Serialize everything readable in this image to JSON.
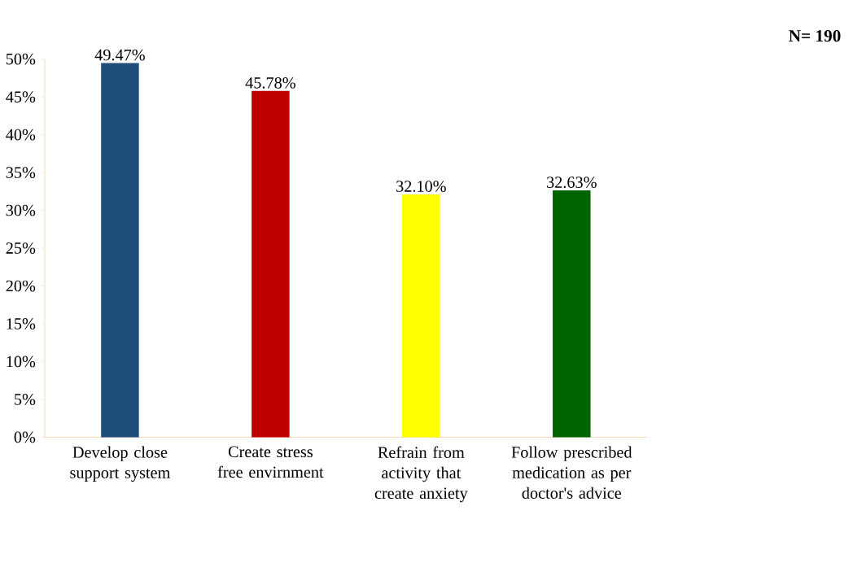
{
  "chart_data": {
    "type": "bar",
    "categories": [
      "Develop close support system",
      "Create stress free envirnment",
      "Refrain from activity that create anxiety",
      "Follow prescribed medication as per doctor's advice"
    ],
    "values": [
      49.47,
      45.78,
      32.1,
      32.63
    ],
    "value_labels": [
      "49.47%",
      "45.78%",
      "32.10%",
      "32.63%"
    ],
    "colors": [
      "#1f4e79",
      "#c00000",
      "#ffff00",
      "#006400"
    ],
    "ylim": [
      0,
      50
    ],
    "yticks": [
      {
        "value": 0,
        "label": "0%"
      },
      {
        "value": 5,
        "label": "5%"
      },
      {
        "value": 10,
        "label": "10%"
      },
      {
        "value": 15,
        "label": "15%"
      },
      {
        "value": 20,
        "label": "20%"
      },
      {
        "value": 25,
        "label": "25%"
      },
      {
        "value": 30,
        "label": "30%"
      },
      {
        "value": 35,
        "label": "35%"
      },
      {
        "value": 40,
        "label": "40%"
      },
      {
        "value": 45,
        "label": "45%"
      },
      {
        "value": 50,
        "label": "50%"
      }
    ],
    "annotations": [
      "N= 190"
    ]
  }
}
